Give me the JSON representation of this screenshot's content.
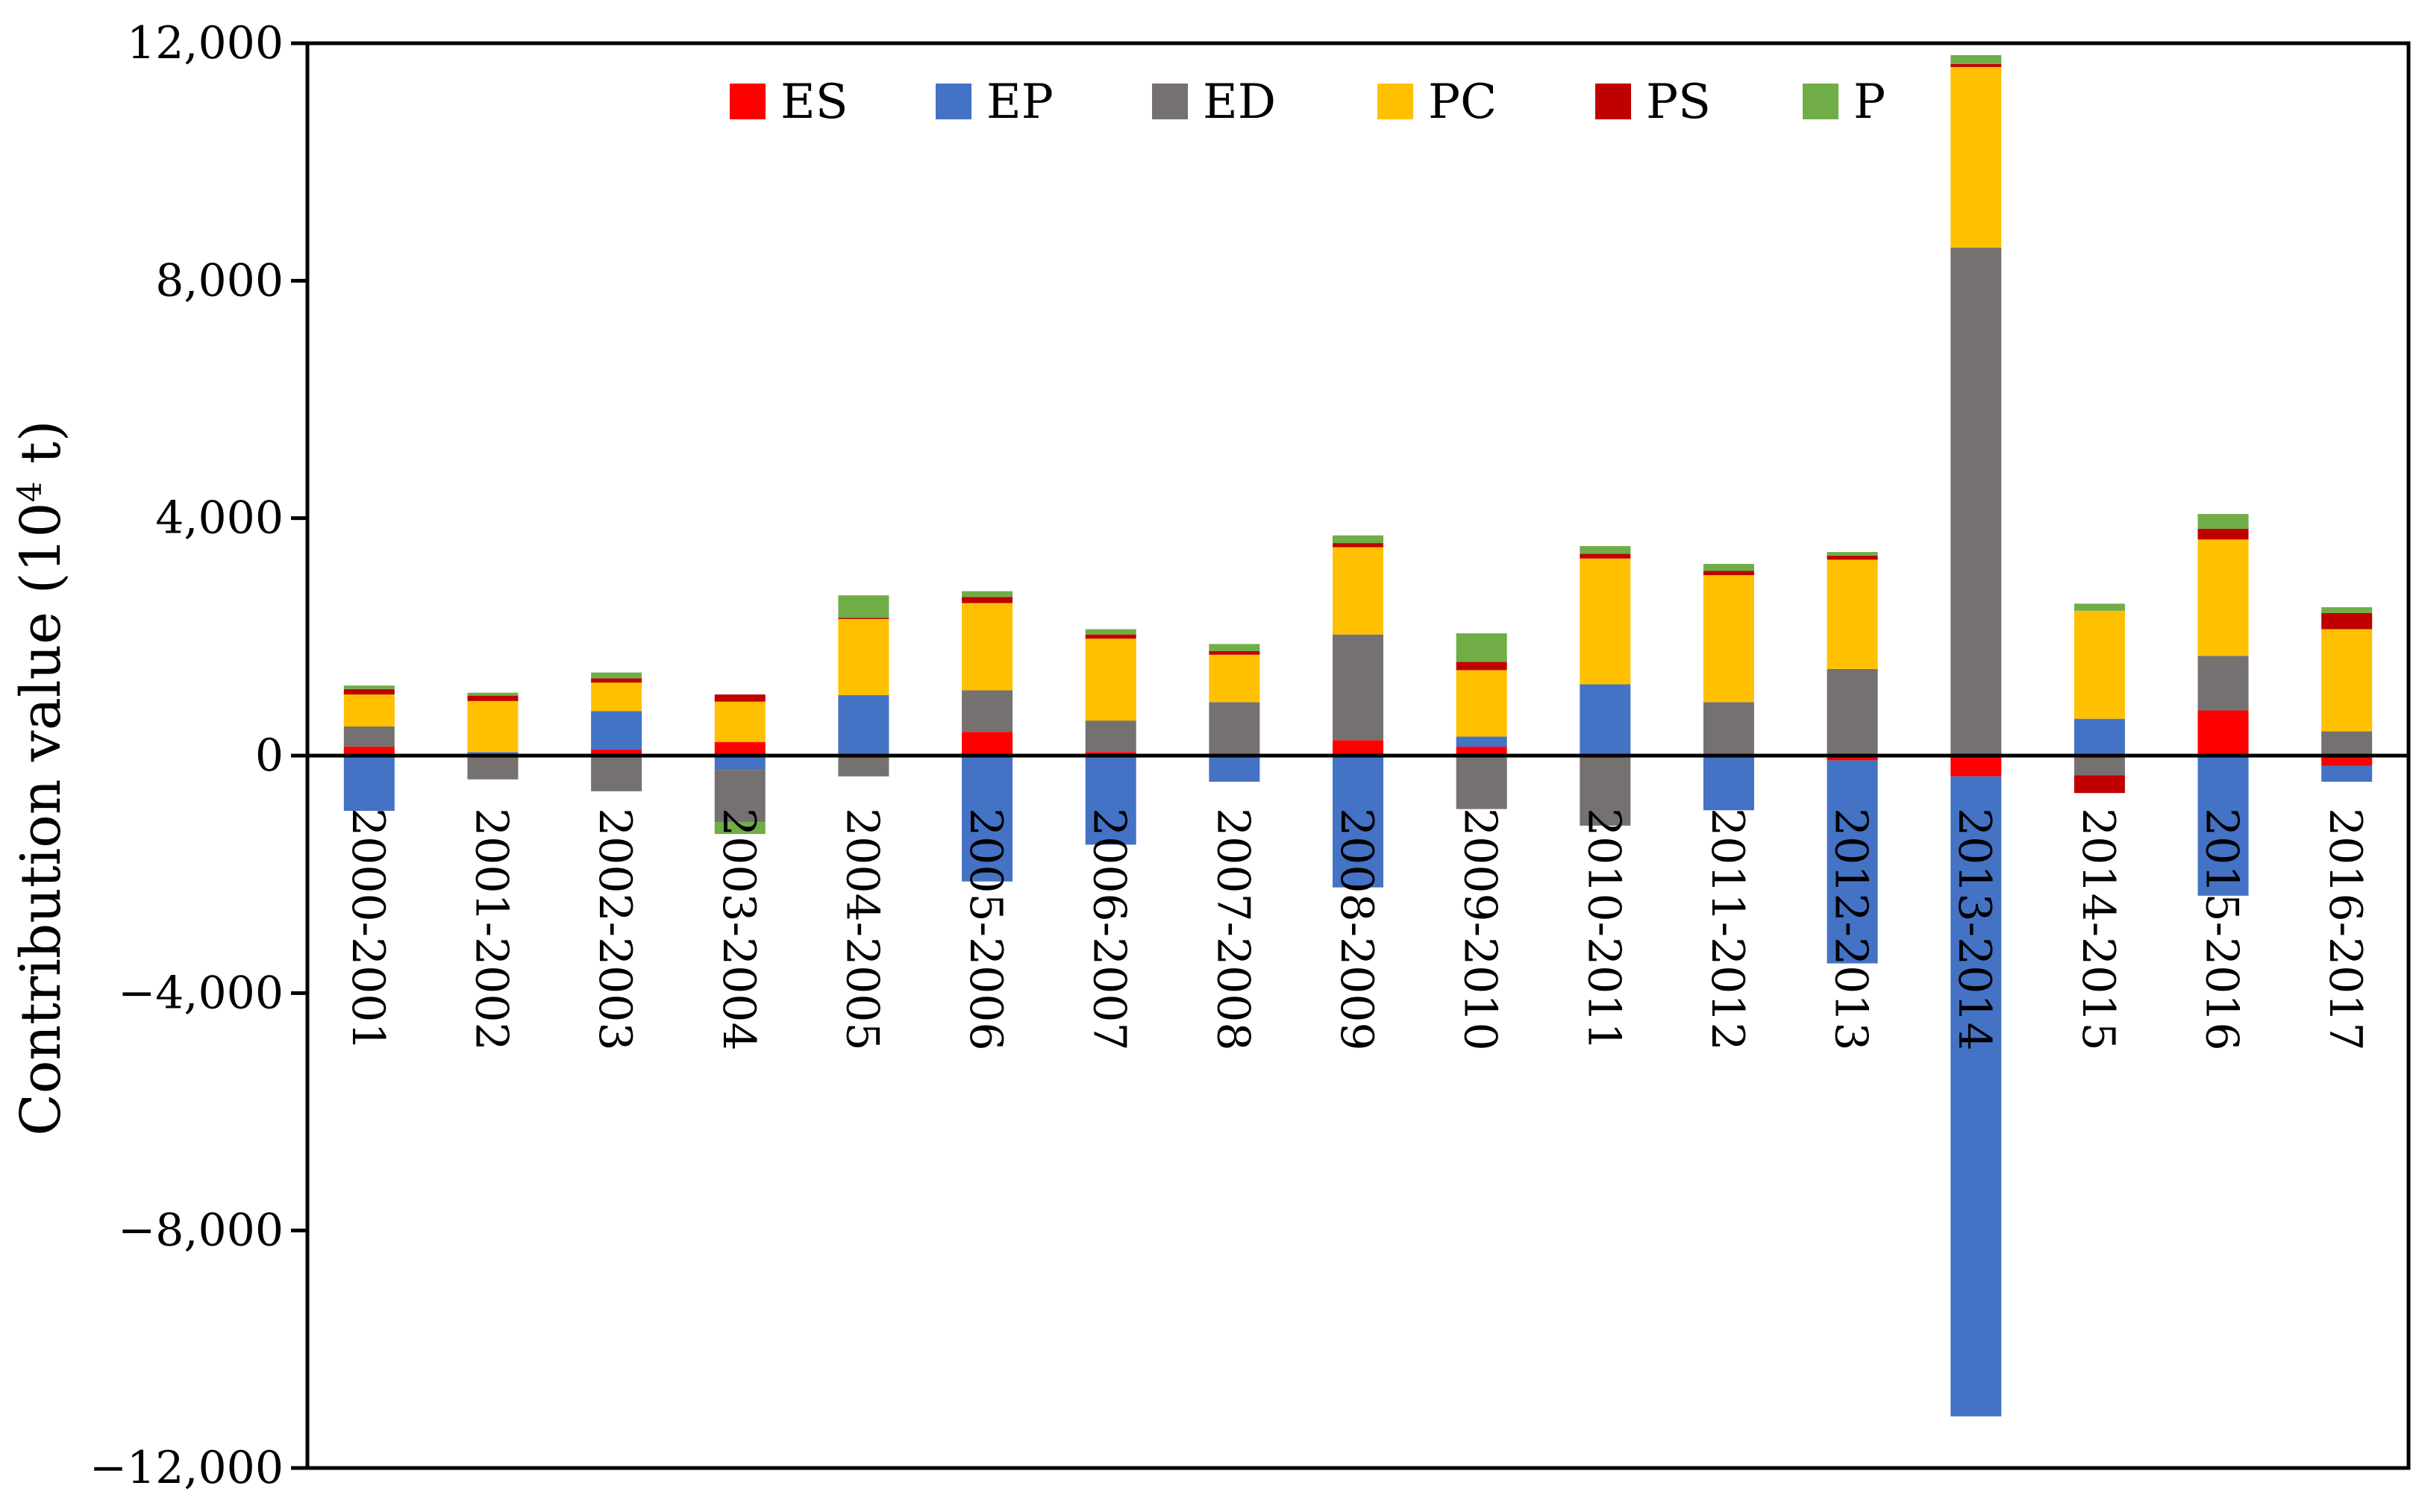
{
  "chart_data": {
    "type": "bar",
    "stacked": true,
    "title": "",
    "xlabel": "",
    "ylabel": "Contribution value (10",
    "ylabel_sup": "4",
    "ylabel_suffix": " t)",
    "ylim": [
      -12000,
      12000
    ],
    "yticks": [
      -12000,
      -8000,
      -4000,
      0,
      4000,
      8000,
      12000
    ],
    "ytick_labels": [
      "−12,000",
      "−8,000",
      "−4,000",
      "0",
      "4,000",
      "8,000",
      "12,000"
    ],
    "grid": false,
    "legend": "top-center",
    "categories": [
      "2000-2001",
      "2001-2002",
      "2002-2003",
      "2003-2004",
      "2004-2005",
      "2005-2006",
      "2006-2007",
      "2007-2008",
      "2008-2009",
      "2009-2010",
      "2010-2011",
      "2011-2012",
      "2012-2013",
      "2013-2014",
      "2014-2015",
      "2015-2016",
      "2016-2017"
    ],
    "series": [
      {
        "name": "ES",
        "color": "#ff0000",
        "values": [
          150,
          30,
          100,
          230,
          20,
          400,
          60,
          20,
          260,
          150,
          20,
          20,
          -80,
          -350,
          20,
          760,
          -170
        ]
      },
      {
        "name": "EP",
        "color": "#4472c4",
        "values": [
          -930,
          30,
          650,
          -240,
          1000,
          -2120,
          -1500,
          -440,
          -2220,
          170,
          1180,
          -920,
          -3420,
          -10780,
          600,
          -2360,
          -270
        ]
      },
      {
        "name": "ED",
        "color": "#767171",
        "values": [
          340,
          -400,
          -600,
          -880,
          -350,
          700,
          530,
          880,
          1780,
          -900,
          -1180,
          880,
          1460,
          8560,
          -330,
          920,
          410
        ]
      },
      {
        "name": "PC",
        "color": "#ffc000",
        "values": [
          540,
          860,
          480,
          680,
          1280,
          1470,
          1380,
          800,
          1470,
          1120,
          2120,
          2140,
          1840,
          3040,
          1820,
          1960,
          1720
        ]
      },
      {
        "name": "PS",
        "color": "#c00000",
        "values": [
          90,
          90,
          70,
          120,
          20,
          100,
          70,
          60,
          70,
          140,
          80,
          70,
          70,
          50,
          -300,
          180,
          270
        ]
      },
      {
        "name": "P",
        "color": "#70ad47",
        "values": [
          60,
          50,
          100,
          -200,
          380,
          100,
          90,
          120,
          130,
          480,
          130,
          120,
          60,
          150,
          120,
          250,
          100
        ]
      }
    ]
  }
}
